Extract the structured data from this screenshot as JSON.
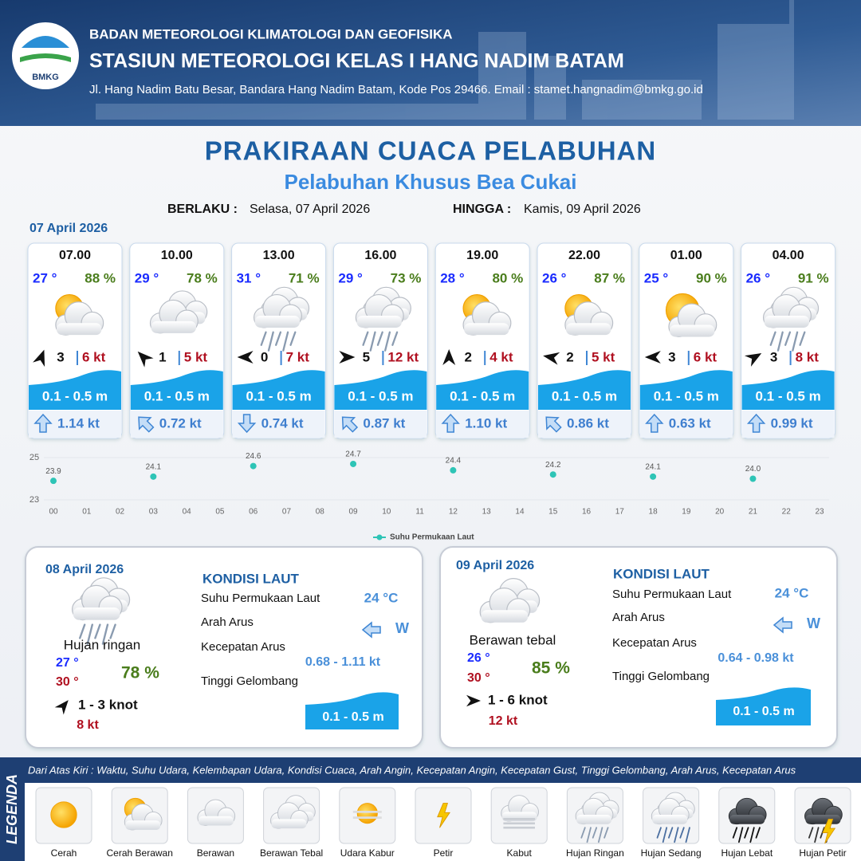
{
  "header": {
    "logo": "BMKG",
    "agency": "BADAN METEOROLOGI KLIMATOLOGI DAN GEOFISIKA",
    "station": "STASIUN METEOROLOGI KELAS I HANG NADIM BATAM",
    "address": "Jl. Hang Nadim Batu Besar, Bandara Hang Nadim Batam, Kode Pos 29466. Email : stamet.hangnadim@bmkg.go.id"
  },
  "title": "PRAKIRAAN CUACA PELABUHAN",
  "subtitle": "Pelabuhan Khusus Bea Cukai",
  "validity": {
    "from_label": "BERLAKU :",
    "from": "Selasa, 07 April 2026",
    "to_label": "HINGGA :",
    "to": "Kamis, 09 April 2026"
  },
  "day1": {
    "date": "07 April 2026",
    "cards": [
      {
        "time": "07.00",
        "temp": "27 °",
        "humidity": "88 %",
        "wind_dir": 20,
        "wind": "3",
        "gust": "6 kt",
        "wave": "0.1 - 0.5 m",
        "current_dir": 0,
        "current": "1.14 kt"
      },
      {
        "time": "10.00",
        "temp": "29 °",
        "humidity": "78 %",
        "wind_dir": 315,
        "wind": "1",
        "gust": "5 kt",
        "wave": "0.1 - 0.5 m",
        "current_dir": 315,
        "current": "0.72 kt"
      },
      {
        "time": "13.00",
        "temp": "31 °",
        "humidity": "71 %",
        "wind_dir": 270,
        "wind": "0",
        "gust": "7 kt",
        "wave": "0.1 - 0.5 m",
        "current_dir": 180,
        "current": "0.74 kt"
      },
      {
        "time": "16.00",
        "temp": "29 °",
        "humidity": "73 %",
        "wind_dir": 90,
        "wind": "5",
        "gust": "12 kt",
        "wave": "0.1 - 0.5 m",
        "current_dir": 315,
        "current": "0.87 kt"
      },
      {
        "time": "19.00",
        "temp": "28 °",
        "humidity": "80 %",
        "wind_dir": 0,
        "wind": "2",
        "gust": "4 kt",
        "wave": "0.1 - 0.5 m",
        "current_dir": 0,
        "current": "1.10 kt"
      },
      {
        "time": "22.00",
        "temp": "26 °",
        "humidity": "87 %",
        "wind_dir": 280,
        "wind": "2",
        "gust": "5 kt",
        "wave": "0.1 - 0.5 m",
        "current_dir": 315,
        "current": "0.86 kt"
      },
      {
        "time": "01.00",
        "temp": "25 °",
        "humidity": "90 %",
        "wind_dir": 270,
        "wind": "3",
        "gust": "6 kt",
        "wave": "0.1 - 0.5 m",
        "current_dir": 0,
        "current": "0.63 kt"
      },
      {
        "time": "04.00",
        "temp": "26 °",
        "humidity": "91 %",
        "wind_dir": 60,
        "wind": "3",
        "gust": "8 kt",
        "wave": "0.1 - 0.5 m",
        "current_dir": 0,
        "current": "0.99 kt"
      }
    ]
  },
  "chart_data": {
    "type": "line",
    "categories": [
      "00",
      "01",
      "02",
      "03",
      "04",
      "05",
      "06",
      "07",
      "08",
      "09",
      "10",
      "11",
      "12",
      "13",
      "14",
      "15",
      "16",
      "17",
      "18",
      "19",
      "20",
      "21",
      "22",
      "23"
    ],
    "series": [
      {
        "name": "Suhu Permukaan Laut",
        "color": "#2ec4b6",
        "values": [
          23.9,
          null,
          null,
          24.1,
          null,
          null,
          24.6,
          null,
          null,
          24.7,
          null,
          null,
          24.4,
          null,
          null,
          24.2,
          null,
          null,
          24.1,
          null,
          null,
          24.0,
          null,
          null
        ],
        "value_labels": [
          "23.9",
          null,
          null,
          "24.1",
          null,
          null,
          "24.6",
          null,
          null,
          "24.7",
          null,
          null,
          "24.4",
          null,
          null,
          "24.2",
          null,
          null,
          "24.1",
          null,
          null,
          "24.0",
          null,
          null
        ]
      }
    ],
    "ylim": [
      23,
      25
    ],
    "yticks": [
      23,
      25
    ]
  },
  "days": [
    {
      "date": "08 April 2026",
      "condition": "Hujan ringan",
      "temp_min": "27 °",
      "temp_max": "30 °",
      "humidity": "78 %",
      "wind_dir": 40,
      "wind": "1 - 3 knot",
      "gust": "8 kt",
      "sea": {
        "title": "KONDISI LAUT",
        "sst_label": "Suhu Permukaan Laut",
        "sst": "24 °C",
        "current_dir_label": "Arah Arus",
        "current_dir": "W",
        "current_speed_label": "Kecepatan Arus",
        "current_speed": "0.68  - 1.11 kt",
        "wave_label": "Tinggi Gelombang",
        "wave": "0.1 - 0.5 m"
      }
    },
    {
      "date": "09 April 2026",
      "condition": "Berawan tebal",
      "temp_min": "26 °",
      "temp_max": "30 °",
      "humidity": "85 %",
      "wind_dir": 90,
      "wind": "1 - 6 knot",
      "gust": "12 kt",
      "sea": {
        "title": "KONDISI LAUT",
        "sst_label": "Suhu Permukaan Laut",
        "sst": "24 °C",
        "current_dir_label": "Arah Arus",
        "current_dir": "W",
        "current_speed_label": "Kecepatan Arus",
        "current_speed": "0.64 - 0.98 kt",
        "wave_label": "Tinggi Gelombang",
        "wave": "0.1 - 0.5 m"
      }
    }
  ],
  "legend": {
    "label": "LEGENDA",
    "description": "Dari Atas Kiri : Waktu, Suhu Udara, Kelembapan Udara, Kondisi Cuaca, Arah Angin, Kecepatan Angin, Kecepatan Gust, Tinggi Gelombang, Arah Arus, Kecepatan Arus",
    "items": [
      "Cerah",
      "Cerah Berawan",
      "Berawan",
      "Berawan Tebal",
      "Udara Kabur",
      "Petir",
      "Kabut",
      "Hujan Ringan",
      "Hujan Sedang",
      "Hujan Lebat",
      "Hujan Petir"
    ]
  }
}
